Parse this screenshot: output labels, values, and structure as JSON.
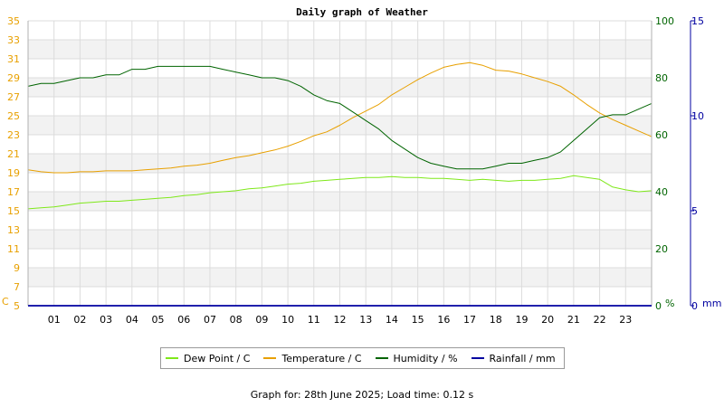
{
  "chart_data": {
    "type": "line",
    "title": "Daily graph of Weather",
    "x_labels": [
      "01",
      "02",
      "03",
      "04",
      "05",
      "06",
      "07",
      "08",
      "09",
      "10",
      "11",
      "12",
      "13",
      "14",
      "15",
      "16",
      "17",
      "18",
      "19",
      "20",
      "21",
      "22",
      "23"
    ],
    "xlim": [
      0,
      24
    ],
    "axes": {
      "left": {
        "unit": "C",
        "ticks": [
          5,
          7,
          9,
          11,
          13,
          15,
          17,
          19,
          21,
          23,
          25,
          27,
          29,
          31,
          33,
          35
        ],
        "range": [
          5,
          35
        ],
        "color": "#e8a000"
      },
      "humidity": {
        "unit": "%",
        "ticks": [
          0,
          20,
          40,
          60,
          80,
          100
        ],
        "range": [
          0,
          100
        ],
        "color": "#006400"
      },
      "rain": {
        "unit": "mm",
        "ticks": [
          0,
          5,
          10,
          15
        ],
        "range": [
          0,
          15
        ],
        "color": "#0000a0"
      }
    },
    "series": [
      {
        "name": "Dew Point / C",
        "color": "#7fe81a",
        "axis": "left",
        "x": [
          0,
          0.5,
          1,
          1.5,
          2,
          2.5,
          3,
          3.5,
          4,
          4.5,
          5,
          5.5,
          6,
          6.5,
          7,
          7.5,
          8,
          8.5,
          9,
          9.5,
          10,
          10.5,
          11,
          11.5,
          12,
          12.5,
          13,
          13.5,
          14,
          14.5,
          15,
          15.5,
          16,
          16.5,
          17,
          17.5,
          18,
          18.5,
          19,
          19.5,
          20,
          20.5,
          21,
          21.5,
          22,
          22.5,
          23,
          23.5,
          24
        ],
        "values": [
          15.2,
          15.3,
          15.4,
          15.6,
          15.8,
          15.9,
          16.0,
          16.0,
          16.1,
          16.2,
          16.3,
          16.4,
          16.6,
          16.7,
          16.9,
          17.0,
          17.1,
          17.3,
          17.4,
          17.6,
          17.8,
          17.9,
          18.1,
          18.2,
          18.3,
          18.4,
          18.5,
          18.5,
          18.6,
          18.5,
          18.5,
          18.4,
          18.4,
          18.3,
          18.2,
          18.3,
          18.2,
          18.1,
          18.2,
          18.2,
          18.3,
          18.4,
          18.7,
          18.5,
          18.3,
          17.5,
          17.2,
          17.0,
          17.1
        ]
      },
      {
        "name": "Temperature / C",
        "color": "#e8a000",
        "axis": "left",
        "x": [
          0,
          0.5,
          1,
          1.5,
          2,
          2.5,
          3,
          3.5,
          4,
          4.5,
          5,
          5.5,
          6,
          6.5,
          7,
          7.5,
          8,
          8.5,
          9,
          9.5,
          10,
          10.5,
          11,
          11.5,
          12,
          12.5,
          13,
          13.5,
          14,
          14.5,
          15,
          15.5,
          16,
          16.5,
          17,
          17.5,
          18,
          18.5,
          19,
          19.5,
          20,
          20.5,
          21,
          21.5,
          22,
          22.5,
          23,
          23.5,
          24
        ],
        "values": [
          19.3,
          19.1,
          19.0,
          19.0,
          19.1,
          19.1,
          19.2,
          19.2,
          19.2,
          19.3,
          19.4,
          19.5,
          19.7,
          19.8,
          20.0,
          20.3,
          20.6,
          20.8,
          21.1,
          21.4,
          21.8,
          22.3,
          22.9,
          23.3,
          24.0,
          24.8,
          25.5,
          26.2,
          27.2,
          28.0,
          28.8,
          29.5,
          30.1,
          30.4,
          30.6,
          30.3,
          29.8,
          29.7,
          29.4,
          29.0,
          28.6,
          28.1,
          27.2,
          26.2,
          25.3,
          24.6,
          24.0,
          23.4,
          22.8
        ]
      },
      {
        "name": "Humidity / %",
        "color": "#006400",
        "axis": "humidity",
        "x": [
          0,
          0.5,
          1,
          1.5,
          2,
          2.5,
          3,
          3.5,
          4,
          4.5,
          5,
          5.5,
          6,
          6.5,
          7,
          7.5,
          8,
          8.5,
          9,
          9.5,
          10,
          10.5,
          11,
          11.5,
          12,
          12.5,
          13,
          13.5,
          14,
          14.5,
          15,
          15.5,
          16,
          16.5,
          17,
          17.5,
          18,
          18.5,
          19,
          19.5,
          20,
          20.5,
          21,
          21.5,
          22,
          22.5,
          23,
          23.5,
          24
        ],
        "values": [
          77,
          78,
          78,
          79,
          80,
          80,
          81,
          81,
          83,
          83,
          84,
          84,
          84,
          84,
          84,
          83,
          82,
          81,
          80,
          80,
          79,
          77,
          74,
          72,
          71,
          68,
          65,
          62,
          58,
          55,
          52,
          50,
          49,
          48,
          48,
          48,
          49,
          50,
          50,
          51,
          52,
          54,
          58,
          62,
          66,
          67,
          67,
          69,
          71
        ]
      },
      {
        "name": "Rainfall / mm",
        "color": "#0000a0",
        "axis": "rain",
        "x": [
          0,
          24
        ],
        "values": [
          0,
          0
        ]
      }
    ]
  },
  "footer": "Graph for: 28th June 2025; Load time: 0.12 s"
}
